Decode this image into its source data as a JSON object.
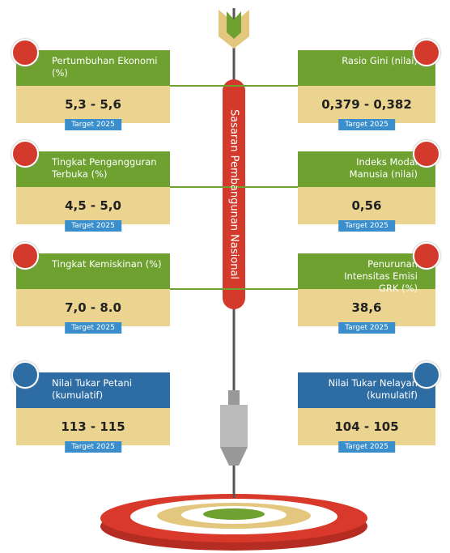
{
  "center_label": "Sasaran Pembangunan Nasional",
  "cards": [
    {
      "title": "Pertumbuhan Ekonomi (%)",
      "value": "5,3 - 5,6",
      "target": "Target 2025"
    },
    {
      "title": "Rasio Gini (nilai)",
      "value": "0,379 - 0,382",
      "target": "Target 2025"
    },
    {
      "title": "Tingkat Pengangguran Terbuka (%)",
      "value": "4,5 - 5,0",
      "target": "Target 2025"
    },
    {
      "title": "Indeks Modal Manusia (nilai)",
      "value": "0,56",
      "target": "Target 2025"
    },
    {
      "title": "Tingkat Kemiskinan (%)",
      "value": "7,0 - 8.0",
      "target": "Target 2025"
    },
    {
      "title": "Penurunan Intensitas Emisi GRK (%)",
      "value": "38,6",
      "target": "Target 2025"
    },
    {
      "title": "Nilai Tukar Petani (kumulatif)",
      "value": "113 - 115",
      "target": "Target 2025"
    },
    {
      "title": "Nilai Tukar Nelayan (kumulatif)",
      "value": "104 - 105",
      "target": "Target 2025"
    }
  ]
}
